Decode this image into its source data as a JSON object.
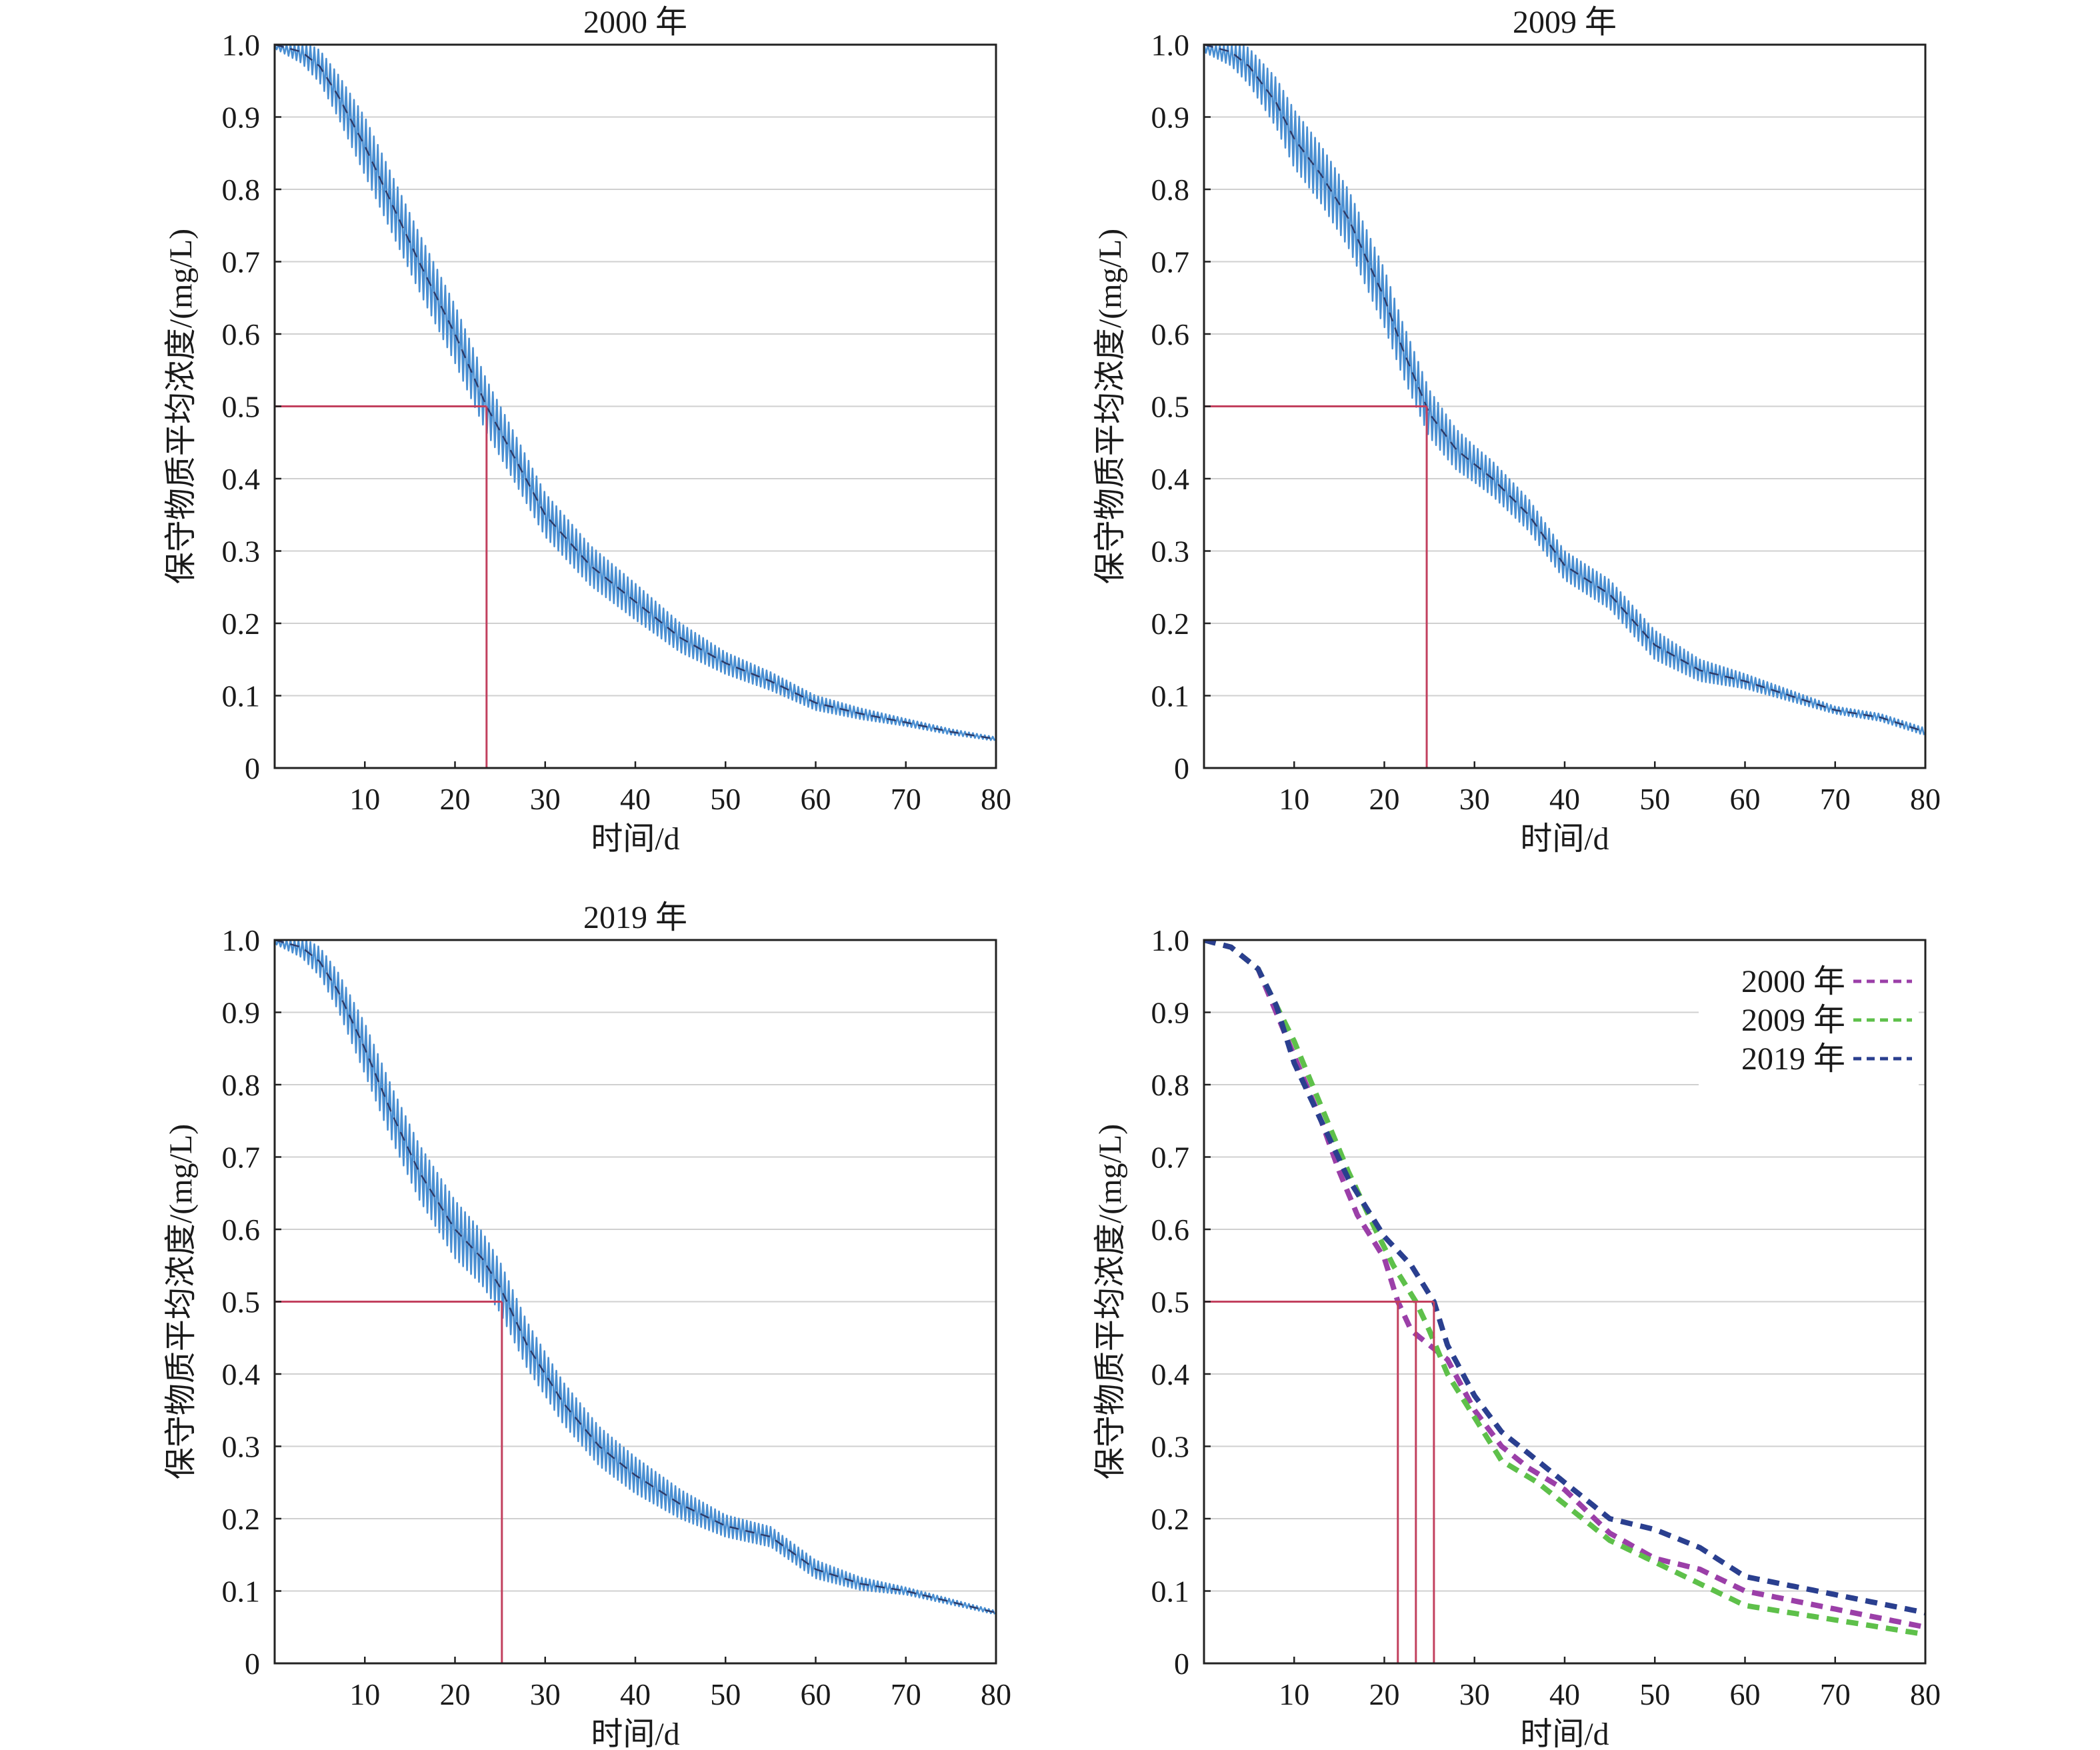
{
  "chart_data": [
    {
      "type": "line",
      "title": "2000 年",
      "xlabel": "时间/d",
      "ylabel": "保守物质平均浓度/(mg/L)",
      "xlim": [
        0,
        80
      ],
      "ylim": [
        0,
        1.0
      ],
      "xticks": [
        "10",
        "20",
        "30",
        "40",
        "50",
        "60",
        "70",
        "80"
      ],
      "yticks": [
        "0",
        "0.1",
        "0.2",
        "0.3",
        "0.4",
        "0.5",
        "0.6",
        "0.7",
        "0.8",
        "0.9",
        "1.0"
      ],
      "grid": "horizontal",
      "oscillation_amplitude": [
        0.01,
        0.08,
        0.08,
        0.06,
        0.05,
        0.03,
        0.02,
        0.01,
        0.005
      ],
      "series": [
        {
          "style": "oscillating",
          "color": "#4a8fd2",
          "x": [
            0,
            3,
            5,
            7,
            10,
            13,
            16,
            20,
            23.5,
            27,
            30,
            35,
            40,
            45,
            50,
            55,
            60,
            65,
            70,
            75,
            80
          ],
          "values": [
            1.0,
            0.99,
            0.97,
            0.93,
            0.86,
            0.78,
            0.7,
            0.6,
            0.5,
            0.42,
            0.35,
            0.28,
            0.23,
            0.18,
            0.145,
            0.12,
            0.09,
            0.075,
            0.063,
            0.05,
            0.04
          ]
        }
      ],
      "threshold": {
        "y": 0.5,
        "x": 23.5,
        "color": "#c2405e"
      }
    },
    {
      "type": "line",
      "title": "2009 年",
      "xlabel": "时间/d",
      "ylabel": "保守物质平均浓度/(mg/L)",
      "xlim": [
        0,
        80
      ],
      "ylim": [
        0,
        1.0
      ],
      "xticks": [
        "10",
        "20",
        "30",
        "40",
        "50",
        "60",
        "70",
        "80"
      ],
      "yticks": [
        "0",
        "0.1",
        "0.2",
        "0.3",
        "0.4",
        "0.5",
        "0.6",
        "0.7",
        "0.8",
        "0.9",
        "1.0"
      ],
      "grid": "horizontal",
      "oscillation_amplitude": [
        0.02,
        0.08,
        0.08,
        0.05,
        0.04,
        0.04,
        0.02,
        0.01,
        0.01
      ],
      "series": [
        {
          "style": "oscillating",
          "color": "#4a8fd2",
          "x": [
            0,
            3,
            5,
            8,
            10,
            13,
            16,
            20,
            22,
            25,
            28,
            32,
            36,
            40,
            45,
            50,
            55,
            60,
            65,
            70,
            75,
            80
          ],
          "values": [
            1.0,
            0.99,
            0.97,
            0.92,
            0.87,
            0.82,
            0.76,
            0.65,
            0.58,
            0.49,
            0.44,
            0.4,
            0.35,
            0.28,
            0.24,
            0.17,
            0.135,
            0.12,
            0.1,
            0.08,
            0.07,
            0.05
          ]
        }
      ],
      "threshold": {
        "y": 0.5,
        "x": 24.7,
        "color": "#c2405e"
      }
    },
    {
      "type": "line",
      "title": "2019 年",
      "xlabel": "时间/d",
      "ylabel": "保守物质平均浓度/(mg/L)",
      "xlim": [
        0,
        80
      ],
      "ylim": [
        0,
        1.0
      ],
      "xticks": [
        "10",
        "20",
        "30",
        "40",
        "50",
        "60",
        "70",
        "80"
      ],
      "yticks": [
        "0",
        "0.1",
        "0.2",
        "0.3",
        "0.4",
        "0.5",
        "0.6",
        "0.7",
        "0.8",
        "0.9",
        "1.0"
      ],
      "grid": "horizontal",
      "oscillation_amplitude": [
        0.01,
        0.07,
        0.08,
        0.06,
        0.05,
        0.03,
        0.025,
        0.01,
        0.005
      ],
      "series": [
        {
          "style": "oscillating",
          "color": "#4a8fd2",
          "x": [
            0,
            3,
            5,
            7,
            10,
            13,
            16,
            20,
            23,
            25,
            28,
            32,
            36,
            40,
            45,
            50,
            55,
            60,
            65,
            70,
            75,
            80
          ],
          "values": [
            1.0,
            0.99,
            0.97,
            0.93,
            0.85,
            0.76,
            0.68,
            0.6,
            0.56,
            0.52,
            0.44,
            0.36,
            0.3,
            0.26,
            0.22,
            0.19,
            0.175,
            0.13,
            0.11,
            0.1,
            0.085,
            0.07
          ]
        }
      ],
      "threshold": {
        "y": 0.5,
        "x": 25.2,
        "color": "#c2405e"
      }
    },
    {
      "type": "line",
      "title": "",
      "xlabel": "时间/d",
      "ylabel": "保守物质平均浓度/(mg/L)",
      "xlim": [
        0,
        80
      ],
      "ylim": [
        0,
        1.0
      ],
      "xticks": [
        "10",
        "20",
        "30",
        "40",
        "50",
        "60",
        "70",
        "80"
      ],
      "yticks": [
        "0",
        "0.1",
        "0.2",
        "0.3",
        "0.4",
        "0.5",
        "0.6",
        "0.7",
        "0.8",
        "0.9",
        "1.0"
      ],
      "grid": "horizontal",
      "legend": "top-right",
      "series": [
        {
          "name": "2000 年",
          "style": "dashed",
          "color": "#9b3fa8",
          "x": [
            0,
            3,
            6,
            8,
            10,
            13,
            15,
            17,
            20,
            21.5,
            23,
            25,
            27,
            30,
            33,
            36,
            40,
            45,
            50,
            55,
            60,
            70,
            80
          ],
          "values": [
            1.0,
            0.99,
            0.96,
            0.9,
            0.84,
            0.75,
            0.68,
            0.62,
            0.56,
            0.5,
            0.46,
            0.44,
            0.42,
            0.35,
            0.3,
            0.27,
            0.24,
            0.18,
            0.145,
            0.13,
            0.1,
            0.075,
            0.05
          ]
        },
        {
          "name": "2009 年",
          "style": "dashed",
          "color": "#5ec04a",
          "x": [
            0,
            3,
            6,
            8,
            10,
            13,
            16,
            19,
            21,
            23.5,
            25,
            27,
            30,
            33,
            37,
            40,
            45,
            50,
            55,
            60,
            70,
            80
          ],
          "values": [
            1.0,
            0.99,
            0.96,
            0.91,
            0.86,
            0.77,
            0.68,
            0.6,
            0.55,
            0.5,
            0.46,
            0.4,
            0.34,
            0.28,
            0.25,
            0.22,
            0.17,
            0.14,
            0.11,
            0.08,
            0.06,
            0.04
          ]
        },
        {
          "name": "2019 年",
          "style": "dashed",
          "color": "#2a3f8f",
          "x": [
            0,
            3,
            6,
            8,
            10,
            13,
            16,
            20,
            23,
            25.5,
            27,
            30,
            33,
            36,
            40,
            45,
            50,
            55,
            60,
            70,
            80
          ],
          "values": [
            1.0,
            0.99,
            0.96,
            0.91,
            0.83,
            0.75,
            0.67,
            0.59,
            0.55,
            0.5,
            0.44,
            0.37,
            0.32,
            0.29,
            0.25,
            0.2,
            0.185,
            0.16,
            0.12,
            0.095,
            0.07
          ]
        }
      ],
      "threshold": {
        "y": 0.5,
        "x_values": [
          21.5,
          23.5,
          25.5
        ],
        "color": "#c2405e"
      }
    }
  ]
}
